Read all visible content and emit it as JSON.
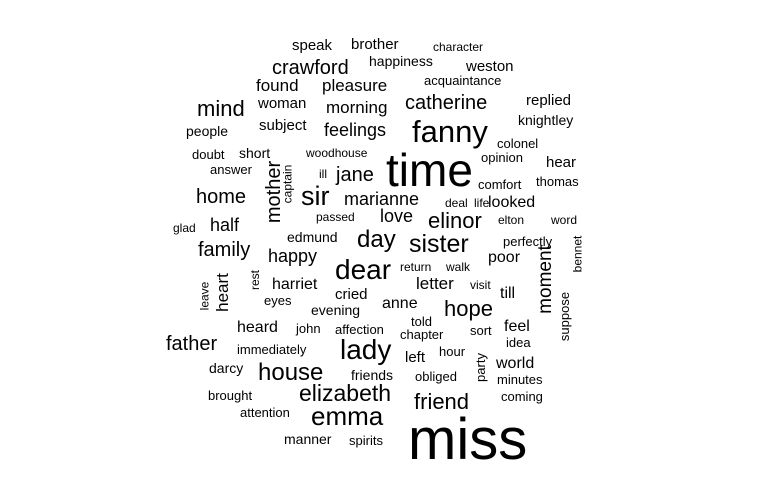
{
  "cloud": {
    "text_color": "#000000",
    "background": "#ffffff",
    "words": [
      {
        "text": "miss",
        "weight": 100
      },
      {
        "text": "time",
        "weight": 62
      },
      {
        "text": "fanny",
        "weight": 40
      },
      {
        "text": "dear",
        "weight": 36
      },
      {
        "text": "lady",
        "weight": 36
      },
      {
        "text": "sir",
        "weight": 34
      },
      {
        "text": "emma",
        "weight": 34
      },
      {
        "text": "elizabeth",
        "weight": 30
      },
      {
        "text": "house",
        "weight": 30
      },
      {
        "text": "sister",
        "weight": 30
      },
      {
        "text": "day",
        "weight": 29
      },
      {
        "text": "elinor",
        "weight": 26
      },
      {
        "text": "friend",
        "weight": 26
      },
      {
        "text": "catherine",
        "weight": 24
      },
      {
        "text": "jane",
        "weight": 24
      },
      {
        "text": "hope",
        "weight": 24
      },
      {
        "text": "mind",
        "weight": 24
      },
      {
        "text": "crawford",
        "weight": 22
      },
      {
        "text": "home",
        "weight": 22
      },
      {
        "text": "family",
        "weight": 22
      },
      {
        "text": "father",
        "weight": 22
      },
      {
        "text": "marianne",
        "weight": 22
      },
      {
        "text": "mother",
        "weight": 22
      },
      {
        "text": "moment",
        "weight": 20
      },
      {
        "text": "feelings",
        "weight": 20
      },
      {
        "text": "happy",
        "weight": 20
      },
      {
        "text": "half",
        "weight": 20
      },
      {
        "text": "pleasure",
        "weight": 19
      },
      {
        "text": "found",
        "weight": 19
      },
      {
        "text": "morning",
        "weight": 19
      },
      {
        "text": "love",
        "weight": 19
      },
      {
        "text": "heart",
        "weight": 19
      },
      {
        "text": "letter",
        "weight": 18
      },
      {
        "text": "looked",
        "weight": 18
      },
      {
        "text": "anne",
        "weight": 18
      },
      {
        "text": "poor",
        "weight": 17
      },
      {
        "text": "heard",
        "weight": 17
      },
      {
        "text": "world",
        "weight": 17
      },
      {
        "text": "feel",
        "weight": 17
      },
      {
        "text": "harriet",
        "weight": 17
      },
      {
        "text": "weston",
        "weight": 16
      },
      {
        "text": "cried",
        "weight": 16
      },
      {
        "text": "woman",
        "weight": 16
      },
      {
        "text": "subject",
        "weight": 16
      },
      {
        "text": "replied",
        "weight": 16
      },
      {
        "text": "brother",
        "weight": 16
      },
      {
        "text": "speak",
        "weight": 16
      },
      {
        "text": "left",
        "weight": 16
      },
      {
        "text": "till",
        "weight": 16
      },
      {
        "text": "hear",
        "weight": 16
      },
      {
        "text": "edmund",
        "weight": 15
      },
      {
        "text": "manner",
        "weight": 15
      },
      {
        "text": "evening",
        "weight": 15
      },
      {
        "text": "knightley",
        "weight": 15
      },
      {
        "text": "happiness",
        "weight": 15
      },
      {
        "text": "people",
        "weight": 15
      },
      {
        "text": "friends",
        "weight": 15
      },
      {
        "text": "darcy",
        "weight": 15
      },
      {
        "text": "short",
        "weight": 15
      },
      {
        "text": "immediately",
        "weight": 14
      },
      {
        "text": "suppose",
        "weight": 14
      },
      {
        "text": "spirits",
        "weight": 14
      },
      {
        "text": "acquaintance",
        "weight": 14
      },
      {
        "text": "opinion",
        "weight": 14
      },
      {
        "text": "brought",
        "weight": 14
      },
      {
        "text": "party",
        "weight": 14
      },
      {
        "text": "coming",
        "weight": 13
      },
      {
        "text": "thomas",
        "weight": 13
      },
      {
        "text": "colonel",
        "weight": 13
      },
      {
        "text": "obliged",
        "weight": 13
      },
      {
        "text": "comfort",
        "weight": 13
      },
      {
        "text": "attention",
        "weight": 13
      },
      {
        "text": "told",
        "weight": 13
      },
      {
        "text": "john",
        "weight": 13
      },
      {
        "text": "answer",
        "weight": 13
      },
      {
        "text": "doubt",
        "weight": 13
      },
      {
        "text": "perfectly",
        "weight": 13
      },
      {
        "text": "minutes",
        "weight": 13
      },
      {
        "text": "idea",
        "weight": 13
      },
      {
        "text": "hour",
        "weight": 13
      },
      {
        "text": "chapter",
        "weight": 13
      },
      {
        "text": "affection",
        "weight": 13
      },
      {
        "text": "eyes",
        "weight": 13
      },
      {
        "text": "sort",
        "weight": 13
      },
      {
        "text": "visit",
        "weight": 12
      },
      {
        "text": "return",
        "weight": 12
      },
      {
        "text": "walk",
        "weight": 12
      },
      {
        "text": "elton",
        "weight": 12
      },
      {
        "text": "word",
        "weight": 12
      },
      {
        "text": "bennet",
        "weight": 12
      },
      {
        "text": "deal",
        "weight": 12
      },
      {
        "text": "life",
        "weight": 12
      },
      {
        "text": "passed",
        "weight": 12
      },
      {
        "text": "glad",
        "weight": 12
      },
      {
        "text": "leave",
        "weight": 12
      },
      {
        "text": "rest",
        "weight": 12
      },
      {
        "text": "captain",
        "weight": 12
      },
      {
        "text": "woodhouse",
        "weight": 12
      },
      {
        "text": "ill",
        "weight": 12
      },
      {
        "text": "character",
        "weight": 12
      }
    ]
  }
}
